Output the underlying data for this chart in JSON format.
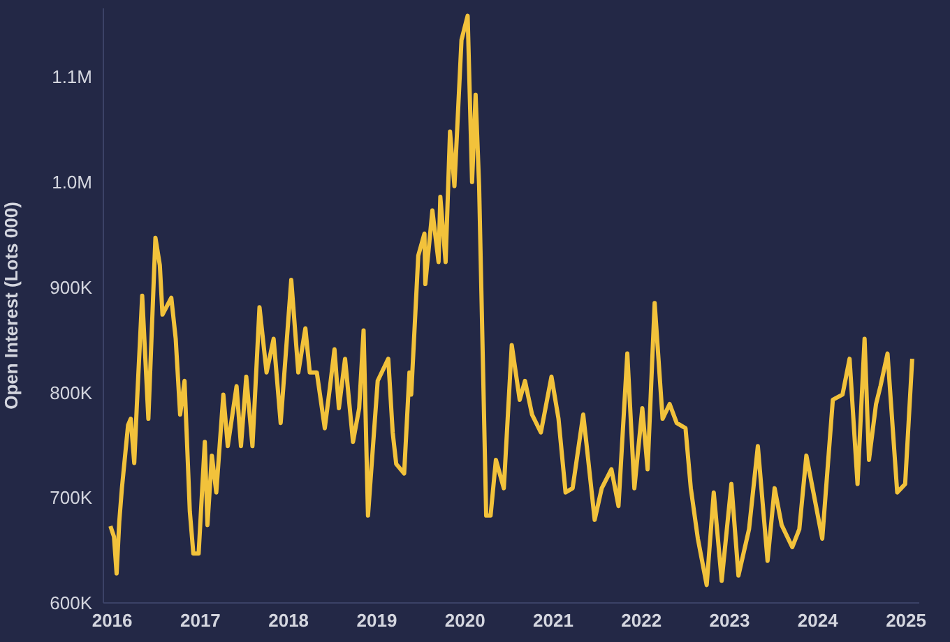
{
  "chart_data": {
    "type": "line",
    "ylabel": "Open Interest (Lots 000)",
    "xlim": [
      2015.9,
      2025.15
    ],
    "ylim": [
      600000,
      1165000
    ],
    "xticks": [
      2016,
      2017,
      2018,
      2019,
      2020,
      2021,
      2022,
      2023,
      2024,
      2025
    ],
    "yticks": [
      {
        "value": 600000,
        "label": "600K"
      },
      {
        "value": 700000,
        "label": "700K"
      },
      {
        "value": 800000,
        "label": "800K"
      },
      {
        "value": 900000,
        "label": "900K"
      },
      {
        "value": 1000000,
        "label": "1.0M"
      },
      {
        "value": 1100000,
        "label": "1.1M"
      }
    ],
    "marker": "none",
    "line_style": "solid",
    "series": [
      {
        "color": "#f2c23b",
        "x": [
          2015.98,
          2016.02,
          2016.05,
          2016.08,
          2016.11,
          2016.18,
          2016.21,
          2016.25,
          2016.28,
          2016.34,
          2016.41,
          2016.49,
          2016.54,
          2016.57,
          2016.67,
          2016.72,
          2016.77,
          2016.82,
          2016.88,
          2016.92,
          2016.98,
          2017.05,
          2017.08,
          2017.13,
          2017.18,
          2017.26,
          2017.31,
          2017.41,
          2017.46,
          2017.52,
          2017.59,
          2017.67,
          2017.75,
          2017.83,
          2017.91,
          2018.03,
          2018.11,
          2018.19,
          2018.24,
          2018.32,
          2018.41,
          2018.47,
          2018.52,
          2018.57,
          2018.64,
          2018.73,
          2018.8,
          2018.85,
          2018.9,
          2019.01,
          2019.13,
          2019.18,
          2019.22,
          2019.31,
          2019.37,
          2019.39,
          2019.47,
          2019.54,
          2019.55,
          2019.63,
          2019.7,
          2019.72,
          2019.78,
          2019.83,
          2019.88,
          2019.96,
          2020.03,
          2020.08,
          2020.12,
          2020.16,
          2020.24,
          2020.29,
          2020.35,
          2020.44,
          2020.53,
          2020.62,
          2020.68,
          2020.76,
          2020.86,
          2020.98,
          2021.06,
          2021.14,
          2021.22,
          2021.34,
          2021.38,
          2021.47,
          2021.55,
          2021.66,
          2021.74,
          2021.84,
          2021.92,
          2022.01,
          2022.07,
          2022.15,
          2022.24,
          2022.32,
          2022.4,
          2022.5,
          2022.56,
          2022.64,
          2022.74,
          2022.82,
          2022.91,
          2023.02,
          2023.1,
          2023.22,
          2023.32,
          2023.43,
          2023.51,
          2023.59,
          2023.71,
          2023.79,
          2023.87,
          2023.95,
          2024.05,
          2024.17,
          2024.28,
          2024.36,
          2024.45,
          2024.53,
          2024.58,
          2024.66,
          2024.71,
          2024.79,
          2024.9,
          2024.99,
          2025.07
        ],
        "values": [
          673000,
          663000,
          628000,
          677000,
          709000,
          769000,
          775000,
          733000,
          789000,
          892000,
          775000,
          947000,
          921000,
          874000,
          890000,
          851000,
          779000,
          811000,
          687000,
          647000,
          647000,
          753000,
          674000,
          740000,
          705000,
          798000,
          749000,
          806000,
          749000,
          815000,
          749000,
          881000,
          819000,
          851000,
          771000,
          907000,
          819000,
          861000,
          819000,
          819000,
          766000,
          806000,
          841000,
          785000,
          832000,
          753000,
          785000,
          859000,
          683000,
          811000,
          832000,
          762000,
          732000,
          723000,
          819000,
          798000,
          930000,
          951000,
          903000,
          973000,
          924000,
          986000,
          924000,
          1048000,
          996000,
          1135000,
          1158000,
          1000000,
          1083000,
          996000,
          683000,
          683000,
          736000,
          709000,
          845000,
          793000,
          811000,
          779000,
          762000,
          815000,
          775000,
          705000,
          709000,
          779000,
          749000,
          679000,
          709000,
          727000,
          692000,
          837000,
          709000,
          785000,
          727000,
          885000,
          775000,
          789000,
          771000,
          766000,
          709000,
          661000,
          617000,
          705000,
          621000,
          713000,
          626000,
          670000,
          749000,
          640000,
          709000,
          674000,
          653000,
          670000,
          740000,
          705000,
          661000,
          793000,
          798000,
          832000,
          713000,
          851000,
          736000,
          789000,
          806000,
          837000,
          705000,
          713000,
          832000
        ]
      }
    ]
  }
}
